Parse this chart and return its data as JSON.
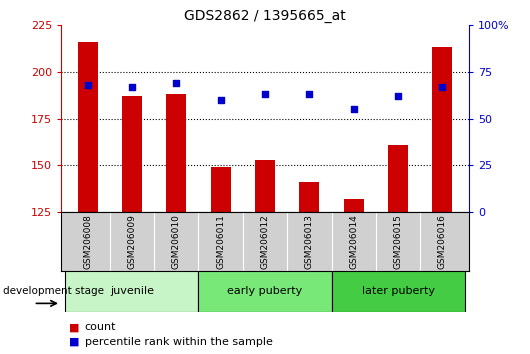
{
  "title": "GDS2862 / 1395665_at",
  "samples": [
    "GSM206008",
    "GSM206009",
    "GSM206010",
    "GSM206011",
    "GSM206012",
    "GSM206013",
    "GSM206014",
    "GSM206015",
    "GSM206016"
  ],
  "counts": [
    216,
    187,
    188,
    149,
    153,
    141,
    132,
    161,
    213
  ],
  "percentile_ranks": [
    68,
    67,
    69,
    60,
    63,
    63,
    55,
    62,
    67
  ],
  "groups": [
    {
      "label": "juvenile",
      "start": 0,
      "end": 2,
      "color": "#c8f5c8"
    },
    {
      "label": "early puberty",
      "start": 3,
      "end": 5,
      "color": "#78e878"
    },
    {
      "label": "later puberty",
      "start": 6,
      "end": 8,
      "color": "#44cc44"
    }
  ],
  "ylim_left": [
    125,
    225
  ],
  "ylim_right": [
    0,
    100
  ],
  "yticks_left": [
    125,
    150,
    175,
    200,
    225
  ],
  "yticks_right": [
    0,
    25,
    50,
    75,
    100
  ],
  "bar_color": "#cc0000",
  "dot_color": "#0000cc",
  "bar_width": 0.45,
  "grid_dotted_at": [
    150,
    175,
    200
  ],
  "legend_count_label": "count",
  "legend_percentile_label": "percentile rank within the sample",
  "dev_stage_label": "development stage"
}
